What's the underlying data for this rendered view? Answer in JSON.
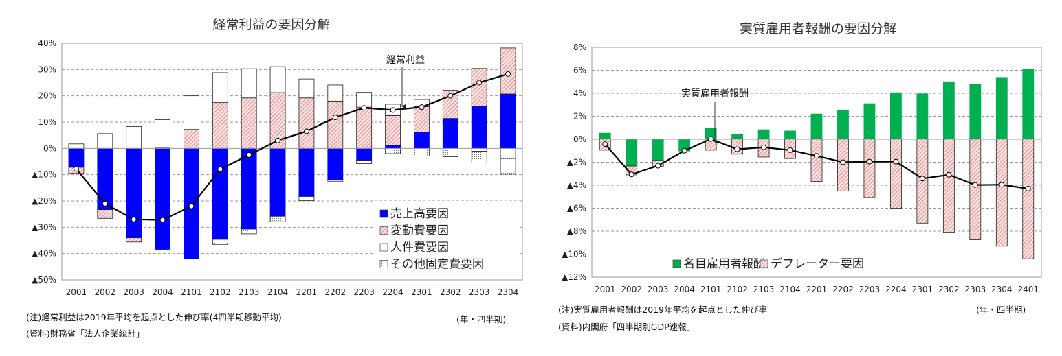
{
  "chart_data": [
    {
      "type": "bar",
      "stacked": true,
      "title": "経常利益の要因分解",
      "categories": [
        "2001",
        "2002",
        "2003",
        "2004",
        "2101",
        "2102",
        "2103",
        "2104",
        "2201",
        "2202",
        "2203",
        "2204",
        "2301",
        "2302",
        "2303",
        "2304"
      ],
      "ylim": [
        -50,
        40
      ],
      "yticks": [
        40,
        30,
        20,
        10,
        0,
        -10,
        -20,
        -30,
        -40,
        -50
      ],
      "ytick_labels": [
        "40%",
        "30%",
        "20%",
        "10%",
        "0%",
        "▲10%",
        "▲20%",
        "▲30%",
        "▲40%",
        "▲50%"
      ],
      "grid": true,
      "legend_position": "bottom-right",
      "series": [
        {
          "name": "売上高要因",
          "color": "#0000ff",
          "fill": "solid",
          "values": [
            -7.2,
            -23.3,
            -34.0,
            -38.4,
            -42.0,
            -34.6,
            -30.7,
            -25.8,
            -18.3,
            -12.0,
            -4.5,
            1.2,
            6.2,
            11.4,
            16.0,
            20.7
          ]
        },
        {
          "name": "変動費要因",
          "color": "#f4b6b6",
          "fill": "hatched",
          "values": [
            -2.3,
            -3.3,
            -1.6,
            0.4,
            7.2,
            17.4,
            19.2,
            21.2,
            19.2,
            18.0,
            15.7,
            11.3,
            9.7,
            10.7,
            14.4,
            17.5
          ]
        },
        {
          "name": "人件費要因",
          "color": "#ffffff",
          "fill": "solid",
          "values": [
            1.7,
            5.6,
            8.3,
            10.5,
            12.8,
            11.4,
            11.1,
            9.9,
            7.2,
            6.1,
            5.6,
            4.3,
            2.7,
            0.8,
            -1.1,
            -3.8
          ]
        },
        {
          "name": "その他固定費要因",
          "color": "#e8e8e8",
          "fill": "dotted",
          "values": [
            0,
            0,
            0,
            0,
            0,
            -1.9,
            -1.8,
            -2.1,
            -1.6,
            -0.5,
            -1.3,
            -2.0,
            -2.9,
            -3.2,
            -4.4,
            -6.0
          ]
        }
      ],
      "line": {
        "name": "経常利益",
        "values": [
          -7.8,
          -21.0,
          -27.0,
          -27.2,
          -22.0,
          -7.9,
          -2.5,
          3.0,
          6.5,
          11.8,
          15.4,
          14.6,
          15.7,
          20.0,
          25.0,
          28.3
        ]
      },
      "annotation": "経常利益",
      "xlabel": "(年・四半期)",
      "notes": [
        "(注)経常利益は2019年平均を起点とした伸び率(4四半期移動平均)",
        "(資料)財務省「法人企業統計」"
      ]
    },
    {
      "type": "bar",
      "stacked": true,
      "title": "実質雇用者報酬の要因分解",
      "categories": [
        "2001",
        "2002",
        "2003",
        "2004",
        "2101",
        "2102",
        "2103",
        "2104",
        "2201",
        "2202",
        "2203",
        "2204",
        "2301",
        "2302",
        "2303",
        "2304",
        "2401"
      ],
      "ylim": [
        -12,
        8
      ],
      "yticks": [
        8,
        6,
        4,
        2,
        0,
        -2,
        -4,
        -6,
        -8,
        -10,
        -12
      ],
      "ytick_labels": [
        "8%",
        "6%",
        "4%",
        "2%",
        "0%",
        "▲2%",
        "▲4%",
        "▲6%",
        "▲8%",
        "▲10%",
        "▲12%"
      ],
      "grid": true,
      "legend_position": "bottom",
      "series": [
        {
          "name": "名目雇用者報酬",
          "color": "#00b050",
          "fill": "solid",
          "values": [
            0.53,
            -2.33,
            -1.85,
            -1.03,
            0.94,
            0.42,
            0.83,
            0.72,
            2.2,
            2.5,
            3.1,
            4.05,
            3.95,
            5.0,
            4.8,
            5.38,
            6.1
          ]
        },
        {
          "name": "デフレーター要因",
          "color": "#f4b6b6",
          "fill": "hatched",
          "values": [
            -0.95,
            -0.77,
            -0.5,
            0,
            -0.95,
            -1.3,
            -1.55,
            -1.68,
            -3.68,
            -4.5,
            -5.07,
            -6.0,
            -7.3,
            -8.1,
            -8.75,
            -9.3,
            -10.4
          ]
        }
      ],
      "line": {
        "name": "実質雇用者報酬",
        "values": [
          -0.42,
          -3.06,
          -2.3,
          -1.0,
          0.02,
          -0.87,
          -0.7,
          -0.95,
          -1.45,
          -2.0,
          -1.95,
          -1.95,
          -3.42,
          -3.09,
          -3.98,
          -3.96,
          -4.3
        ]
      },
      "annotation": "実質雇用者報酬",
      "xlabel": "(年・四半期)",
      "notes": [
        "(注)実質雇用者報酬は2019年平均を起点とした伸び率",
        "(資料)内閣府「四半期別GDP速報」"
      ]
    }
  ]
}
